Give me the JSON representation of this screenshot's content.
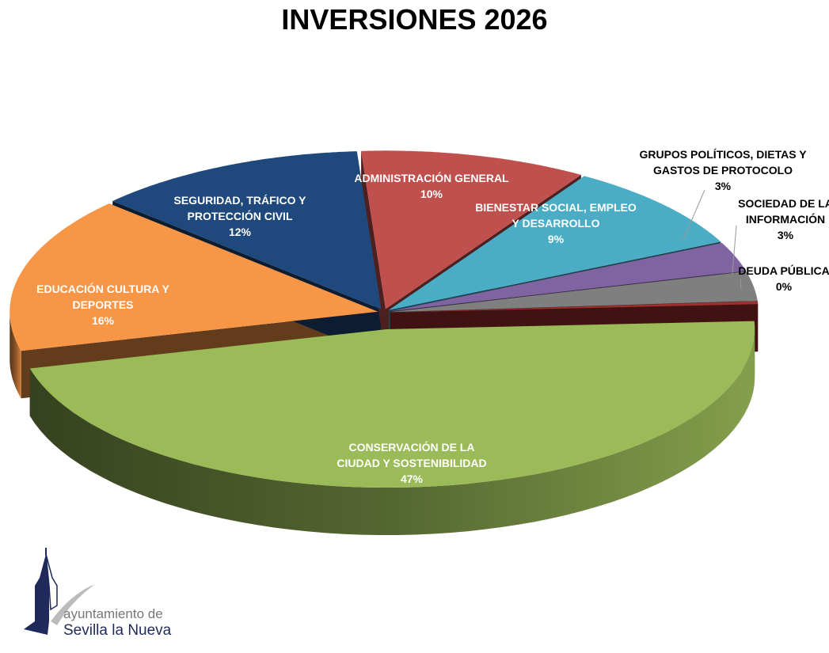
{
  "chart_data": {
    "type": "pie",
    "title": "INVERSIONES 2026",
    "slices": [
      {
        "label": "CONSERVACIÓN DE LA CIUDAD Y SOSTENIBILIDAD",
        "lines": [
          "CONSERVACIÓN DE LA",
          "CIUDAD Y SOSTENIBILIDAD"
        ],
        "value": 47,
        "pct": "47%",
        "color": "#9bbb59"
      },
      {
        "label": "EDUCACIÓN CULTURA Y DEPORTES",
        "lines": [
          "EDUCACIÓN CULTURA Y",
          "DEPORTES"
        ],
        "value": 16,
        "pct": "16%",
        "color": "#f79646"
      },
      {
        "label": "SEGURIDAD, TRÁFICO Y PROTECCIÓN CIVIL",
        "lines": [
          "SEGURIDAD, TRÁFICO Y",
          "PROTECCIÓN CIVIL"
        ],
        "value": 12,
        "pct": "12%",
        "color": "#1f497d"
      },
      {
        "label": "ADMINISTRACIÓN GENERAL",
        "lines": [
          "ADMINISTRACIÓN GENERAL"
        ],
        "value": 10,
        "pct": "10%",
        "color": "#c0504d"
      },
      {
        "label": "BIENESTAR SOCIAL, EMPLEO Y DESARROLLO",
        "lines": [
          "BIENESTAR SOCIAL, EMPLEO",
          "Y DESARROLLO"
        ],
        "value": 9,
        "pct": "9%",
        "color": "#4bacc6"
      },
      {
        "label": "GRUPOS POLÍTICOS, DIETAS Y GASTOS DE PROTOCOLO",
        "lines": [
          "GRUPOS POLÍTICOS, DIETAS Y",
          "GASTOS DE PROTOCOLO"
        ],
        "value": 3,
        "pct": "3%",
        "color": "#8064a2"
      },
      {
        "label": "SOCIEDAD DE LA INFORMACIÓN",
        "lines": [
          "SOCIEDAD DE LA",
          "INFORMACIÓN"
        ],
        "value": 3,
        "pct": "3%",
        "color": "#7f7f7f"
      },
      {
        "label": "DEUDA PÚBLICA",
        "lines": [
          "DEUDA PÚBLICA"
        ],
        "value": 0.3,
        "pct": "0%",
        "color": "#a0302d"
      }
    ],
    "legend": "none"
  },
  "logo": {
    "line1": "ayuntamiento de",
    "line2": "Sevilla la Nueva"
  }
}
